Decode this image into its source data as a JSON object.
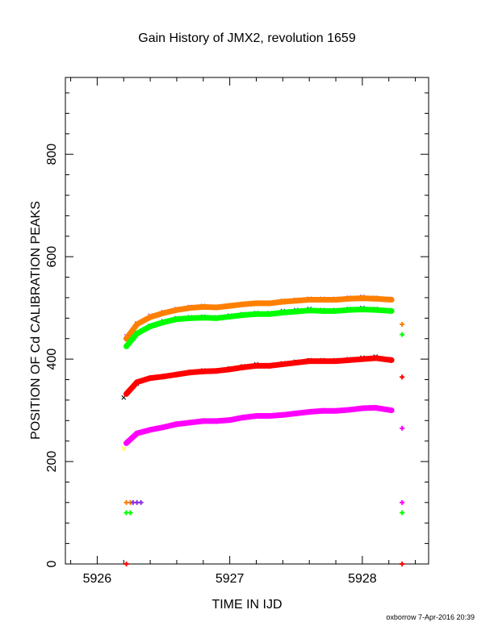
{
  "chart_data": {
    "type": "scatter",
    "title": "Gain History of JMX2, revolution 1659",
    "xlabel": "TIME IN IJD",
    "ylabel": "POSITION OF Cd CALIBRATION PEAKS",
    "xlim": [
      5925.76,
      5928.5
    ],
    "ylim": [
      0,
      950
    ],
    "x_ticks": [
      5926,
      5927,
      5928
    ],
    "x_tick_labels": [
      "5926",
      "5927",
      "5928"
    ],
    "y_ticks": [
      0,
      200,
      400,
      600,
      800
    ],
    "y_tick_labels": [
      "0",
      "200",
      "400",
      "600",
      "800"
    ],
    "grid": false,
    "legend": "none",
    "series": [
      {
        "marker": "x",
        "color": "#8a2be2",
        "role": "raw",
        "x": [
          5926.22,
          5926.3,
          5926.4,
          5926.5,
          5926.6,
          5926.7,
          5926.8,
          5926.9,
          5927.0,
          5927.1,
          5927.2,
          5927.3,
          5927.4,
          5927.5,
          5927.6,
          5927.7,
          5927.8,
          5927.9,
          5928.0,
          5928.1,
          5928.2
        ],
        "y": [
          445,
          470,
          485,
          492,
          498,
          502,
          504,
          502,
          505,
          508,
          510,
          510,
          514,
          516,
          518,
          518,
          518,
          520,
          522,
          520,
          518
        ]
      },
      {
        "marker": "x",
        "color": "#0000ff",
        "role": "raw",
        "x": [
          5926.22,
          5926.3,
          5926.4,
          5926.5,
          5926.6,
          5926.7,
          5926.8,
          5926.9,
          5927.0,
          5927.1,
          5927.2,
          5927.3,
          5927.4,
          5927.5,
          5927.6,
          5927.7,
          5927.8,
          5927.9,
          5928.0,
          5928.1,
          5928.2
        ],
        "y": [
          425,
          452,
          465,
          474,
          480,
          482,
          483,
          482,
          485,
          488,
          490,
          490,
          494,
          496,
          498,
          496,
          496,
          498,
          500,
          498,
          496
        ]
      },
      {
        "marker": "x",
        "color": "#000000",
        "role": "raw",
        "x": [
          5926.2,
          5926.3,
          5926.4,
          5926.5,
          5926.6,
          5926.7,
          5926.8,
          5926.9,
          5927.0,
          5927.1,
          5927.2,
          5927.3,
          5927.4,
          5927.5,
          5927.6,
          5927.7,
          5927.8,
          5927.9,
          5928.0,
          5928.1,
          5928.2
        ],
        "y": [
          325,
          352,
          362,
          366,
          370,
          375,
          378,
          378,
          382,
          386,
          390,
          388,
          392,
          395,
          398,
          398,
          398,
          400,
          403,
          405,
          400
        ]
      },
      {
        "marker": "x",
        "color": "#ffff00",
        "role": "raw",
        "x": [
          5926.2,
          5926.3,
          5926.4,
          5926.5,
          5926.6,
          5926.7,
          5926.8,
          5926.9,
          5927.0,
          5927.1,
          5927.2,
          5927.3,
          5927.4,
          5927.5,
          5927.6,
          5927.7,
          5927.8,
          5927.9,
          5928.0,
          5928.1,
          5928.2
        ],
        "y": [
          225,
          252,
          262,
          268,
          275,
          278,
          280,
          280,
          282,
          287,
          290,
          290,
          292,
          295,
          298,
          300,
          300,
          302,
          305,
          306,
          300
        ]
      },
      {
        "marker": "dot",
        "color": "#ff7f00",
        "role": "smoothed",
        "x": [
          5926.22,
          5926.3,
          5926.4,
          5926.5,
          5926.6,
          5926.7,
          5926.8,
          5926.9,
          5927.0,
          5927.1,
          5927.2,
          5927.3,
          5927.4,
          5927.5,
          5927.6,
          5927.7,
          5927.8,
          5927.9,
          5928.0,
          5928.1,
          5928.22
        ],
        "y": [
          440,
          468,
          482,
          490,
          496,
          500,
          502,
          501,
          504,
          507,
          509,
          509,
          512,
          514,
          516,
          516,
          516,
          518,
          519,
          518,
          516
        ]
      },
      {
        "marker": "dot",
        "color": "#00ff00",
        "role": "smoothed",
        "x": [
          5926.22,
          5926.3,
          5926.4,
          5926.5,
          5926.6,
          5926.7,
          5926.8,
          5926.9,
          5927.0,
          5927.1,
          5927.2,
          5927.3,
          5927.4,
          5927.5,
          5927.6,
          5927.7,
          5927.8,
          5927.9,
          5928.0,
          5928.1,
          5928.22
        ],
        "y": [
          425,
          450,
          464,
          472,
          478,
          480,
          481,
          480,
          483,
          486,
          488,
          488,
          491,
          493,
          495,
          494,
          494,
          496,
          497,
          496,
          494
        ]
      },
      {
        "marker": "dot",
        "color": "#ff0000",
        "role": "smoothed",
        "x": [
          5926.22,
          5926.3,
          5926.4,
          5926.5,
          5926.6,
          5926.7,
          5926.8,
          5926.9,
          5927.0,
          5927.1,
          5927.2,
          5927.3,
          5927.4,
          5927.5,
          5927.6,
          5927.7,
          5927.8,
          5927.9,
          5928.0,
          5928.1,
          5928.22
        ],
        "y": [
          332,
          355,
          363,
          366,
          370,
          374,
          376,
          377,
          380,
          384,
          387,
          387,
          390,
          393,
          396,
          396,
          396,
          398,
          400,
          402,
          398
        ]
      },
      {
        "marker": "dot",
        "color": "#ff00ff",
        "role": "smoothed",
        "x": [
          5926.22,
          5926.3,
          5926.4,
          5926.5,
          5926.6,
          5926.7,
          5926.8,
          5926.9,
          5927.0,
          5927.1,
          5927.2,
          5927.3,
          5927.4,
          5927.5,
          5927.6,
          5927.7,
          5927.8,
          5927.9,
          5928.0,
          5928.1,
          5928.22
        ],
        "y": [
          236,
          255,
          262,
          267,
          273,
          276,
          279,
          279,
          281,
          286,
          289,
          289,
          291,
          294,
          297,
          299,
          299,
          301,
          304,
          305,
          300
        ]
      }
    ],
    "edge_markers": [
      {
        "color": "#ff7f00",
        "x": [
          5926.22,
          5926.25
        ],
        "y": [
          120,
          120
        ]
      },
      {
        "color": "#8a2be2",
        "x": [
          5926.27,
          5926.3,
          5926.33
        ],
        "y": [
          120,
          120,
          120
        ]
      },
      {
        "color": "#00ff00",
        "x": [
          5926.22,
          5926.25
        ],
        "y": [
          100,
          100
        ]
      },
      {
        "color": "#ff0000",
        "x": [
          5926.22
        ],
        "y": [
          0
        ]
      },
      {
        "color": "#ff7f00",
        "x": [
          5928.3
        ],
        "y": [
          468
        ]
      },
      {
        "color": "#00ff00",
        "x": [
          5928.3
        ],
        "y": [
          448
        ]
      },
      {
        "color": "#ff0000",
        "x": [
          5928.3
        ],
        "y": [
          365
        ]
      },
      {
        "color": "#ff00ff",
        "x": [
          5928.3
        ],
        "y": [
          265
        ]
      },
      {
        "color": "#ff00ff",
        "x": [
          5928.3
        ],
        "y": [
          120
        ]
      },
      {
        "color": "#00ff00",
        "x": [
          5928.3
        ],
        "y": [
          100
        ]
      },
      {
        "color": "#ff0000",
        "x": [
          5928.3
        ],
        "y": [
          0
        ]
      }
    ]
  },
  "footer": {
    "credit": "oxborrow  7-Apr-2016 20:39"
  }
}
